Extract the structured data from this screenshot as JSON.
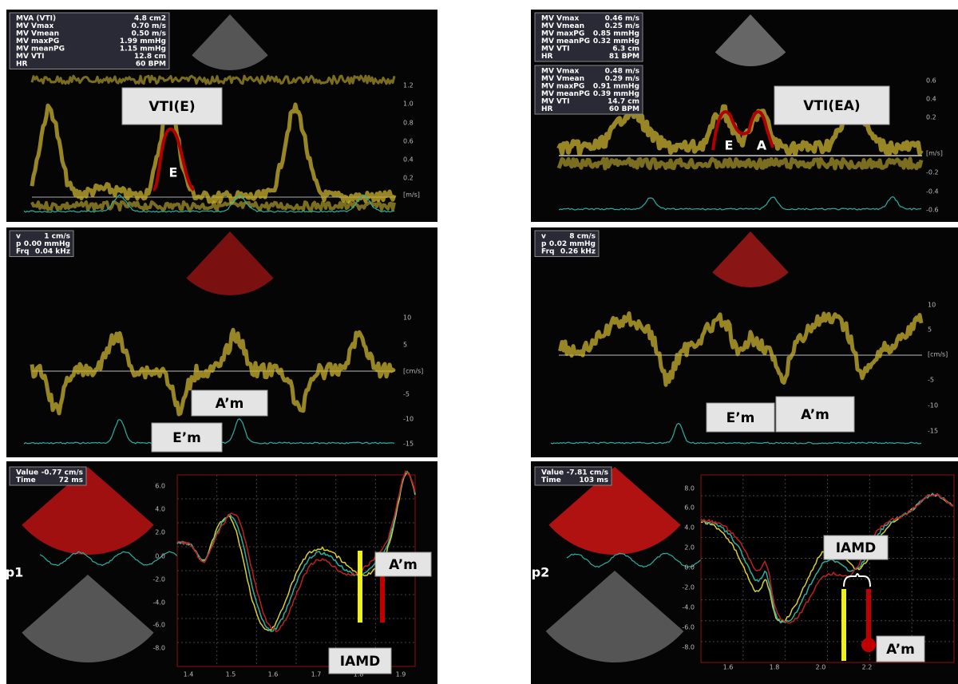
{
  "panels": [
    {
      "measurements": [
        [
          {
            "label": "MVA (VTI)",
            "value": "4.8 cm2"
          },
          {
            "label": "MV Vmax",
            "value": "0.70 m/s"
          },
          {
            "label": "MV Vmean",
            "value": "0.50 m/s"
          },
          {
            "label": "MV maxPG",
            "value": "1.99 mmHg"
          },
          {
            "label": "MV meanPG",
            "value": "1.15 mmHg"
          },
          {
            "label": "MV VTI",
            "value": "12.8 cm"
          },
          {
            "label": "HR",
            "value": "60 BPM"
          }
        ]
      ],
      "annotations": [
        "VTI(E)",
        "E"
      ],
      "scale": [
        "1.2",
        "1.0",
        "0.8",
        "0.6",
        "0.4",
        "0.2",
        "[m/s]"
      ]
    },
    {
      "measurements": [
        [
          {
            "label": "MV Vmax",
            "value": "0.46 m/s"
          },
          {
            "label": "MV Vmean",
            "value": "0.25 m/s"
          },
          {
            "label": "MV maxPG",
            "value": "0.85 mmHg"
          },
          {
            "label": "MV meanPG",
            "value": "0.32 mmHg"
          },
          {
            "label": "MV VTI",
            "value": "6.3 cm"
          },
          {
            "label": "HR",
            "value": "81 BPM"
          }
        ],
        [
          {
            "label": "MV Vmax",
            "value": "0.48 m/s"
          },
          {
            "label": "MV Vmean",
            "value": "0.29 m/s"
          },
          {
            "label": "MV maxPG",
            "value": "0.91 mmHg"
          },
          {
            "label": "MV meanPG",
            "value": "0.39 mmHg"
          },
          {
            "label": "MV VTI",
            "value": "14.7 cm"
          },
          {
            "label": "HR",
            "value": "60 BPM"
          }
        ]
      ],
      "annotations": [
        "VTI(EA)",
        "E",
        "A"
      ],
      "scale": [
        "0.6",
        "0.4",
        "0.2",
        "[m/s]",
        "-0.2",
        "-0.4",
        "-0.6"
      ]
    },
    {
      "measurements": [
        [
          {
            "label": "v",
            "value": "1 cm/s"
          },
          {
            "label": "p",
            "value": "0.00 mmHg"
          },
          {
            "label": "Frq",
            "value": "0.04 kHz"
          }
        ]
      ],
      "annotations": [
        "A’m",
        "E’m"
      ],
      "scale": [
        "10",
        "5",
        "[cm/s]",
        "-5",
        "-10",
        "-15"
      ]
    },
    {
      "measurements": [
        [
          {
            "label": "v",
            "value": "8 cm/s"
          },
          {
            "label": "p",
            "value": "0.02 mmHg"
          },
          {
            "label": "Frq",
            "value": "0.26 kHz"
          }
        ]
      ],
      "annotations": [
        "E’m",
        "A’m"
      ],
      "scale": [
        "10",
        "5",
        "[cm/s]",
        "-5",
        "-10",
        "-15"
      ]
    },
    {
      "measurements": [
        [
          {
            "label": "Value",
            "value": "-0.77 cm/s"
          },
          {
            "label": "Time",
            "value": "72 ms"
          }
        ]
      ],
      "annotations": [
        "A’m",
        "IAMD",
        "p1"
      ],
      "scale": [
        "6.0",
        "4.0",
        "2.0",
        "0.0",
        "-2.0",
        "-4.0",
        "-6.0",
        "-8.0"
      ],
      "x_scale": [
        "1.4",
        "1.5",
        "1.6",
        "1.7",
        "1.8",
        "1.9"
      ]
    },
    {
      "measurements": [
        [
          {
            "label": "Value",
            "value": "-7.81 cm/s"
          },
          {
            "label": "Time",
            "value": "103 ms"
          }
        ]
      ],
      "annotations": [
        "IAMD",
        "A’m",
        "p2"
      ],
      "scale": [
        "8.0",
        "6.0",
        "4.0",
        "2.0",
        "0.0",
        "-2.0",
        "-4.0",
        "-6.0",
        "-8.0"
      ],
      "x_scale": [
        "1.6",
        "1.8",
        "2.0",
        "2.2"
      ]
    }
  ]
}
